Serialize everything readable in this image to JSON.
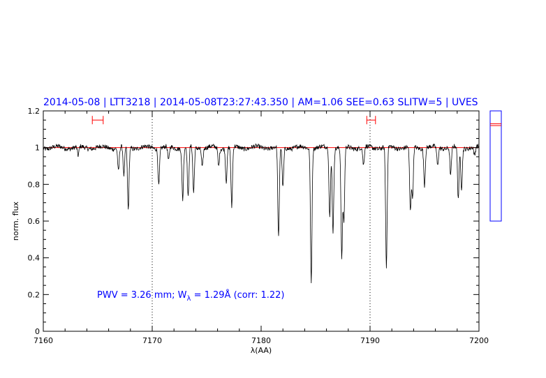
{
  "header": {
    "date": "2014-05-08",
    "target": "LTT3218",
    "timestamp": "2014-05-08T23:27:43.350",
    "conditions": "AM=1.06 SEE=0.63 SLITW=5",
    "instrument": "UVES"
  },
  "annotation": {
    "pwv_label": "PWV = 3.26 mm; W",
    "w_sub": "λ",
    "w_value": " = 1.29Å (corr: 1.22)"
  },
  "colors": {
    "header_text": "#0000ff",
    "spectrum": "#000000",
    "continuum": "#ff0000",
    "range_markers": "#ff0000",
    "side_box": "#0000ff"
  },
  "chart_data": {
    "type": "line",
    "title": "",
    "xlabel": "λ(AA)",
    "ylabel": "norm. flux",
    "xlim": [
      7160,
      7200
    ],
    "ylim": [
      0,
      1.2
    ],
    "x_ticks": [
      "7160",
      "7170",
      "7180",
      "7190",
      "7200"
    ],
    "y_ticks": [
      "0",
      "0.2",
      "0.4",
      "0.6",
      "0.8",
      "1",
      "1.2"
    ],
    "vertical_dotted_lines_x": [
      7170,
      7190
    ],
    "continuum_y": 1.0,
    "continuum_range_markers": [
      [
        7164.5,
        7165.5
      ],
      [
        7189.7,
        7190.5
      ]
    ],
    "continuum_marker_y": 1.15,
    "absorption_lines": [
      {
        "x": 7163.2,
        "depth": 0.05
      },
      {
        "x": 7166.9,
        "depth": 0.13
      },
      {
        "x": 7167.4,
        "depth": 0.16
      },
      {
        "x": 7167.8,
        "depth": 0.34
      },
      {
        "x": 7170.6,
        "depth": 0.2
      },
      {
        "x": 7171.5,
        "depth": 0.08
      },
      {
        "x": 7172.8,
        "depth": 0.28
      },
      {
        "x": 7173.3,
        "depth": 0.28
      },
      {
        "x": 7173.8,
        "depth": 0.25
      },
      {
        "x": 7174.6,
        "depth": 0.1
      },
      {
        "x": 7176.1,
        "depth": 0.1
      },
      {
        "x": 7176.8,
        "depth": 0.18
      },
      {
        "x": 7177.3,
        "depth": 0.33
      },
      {
        "x": 7181.6,
        "depth": 0.5
      },
      {
        "x": 7182.0,
        "depth": 0.22
      },
      {
        "x": 7184.6,
        "depth": 0.72
      },
      {
        "x": 7186.3,
        "depth": 0.38
      },
      {
        "x": 7186.6,
        "depth": 0.45
      },
      {
        "x": 7187.4,
        "depth": 0.6
      },
      {
        "x": 7187.6,
        "depth": 0.4
      },
      {
        "x": 7189.4,
        "depth": 0.1
      },
      {
        "x": 7191.5,
        "depth": 0.66
      },
      {
        "x": 7193.7,
        "depth": 0.35
      },
      {
        "x": 7193.9,
        "depth": 0.28
      },
      {
        "x": 7195.0,
        "depth": 0.2
      },
      {
        "x": 7196.2,
        "depth": 0.1
      },
      {
        "x": 7197.4,
        "depth": 0.15
      },
      {
        "x": 7198.1,
        "depth": 0.28
      },
      {
        "x": 7198.4,
        "depth": 0.22
      },
      {
        "x": 7199.6,
        "depth": 0.05
      }
    ],
    "side_panel": {
      "ylim": [
        0,
        1.2
      ],
      "continuum_y": 1.0,
      "markers_y": [
        1.04,
        1.06
      ]
    }
  }
}
